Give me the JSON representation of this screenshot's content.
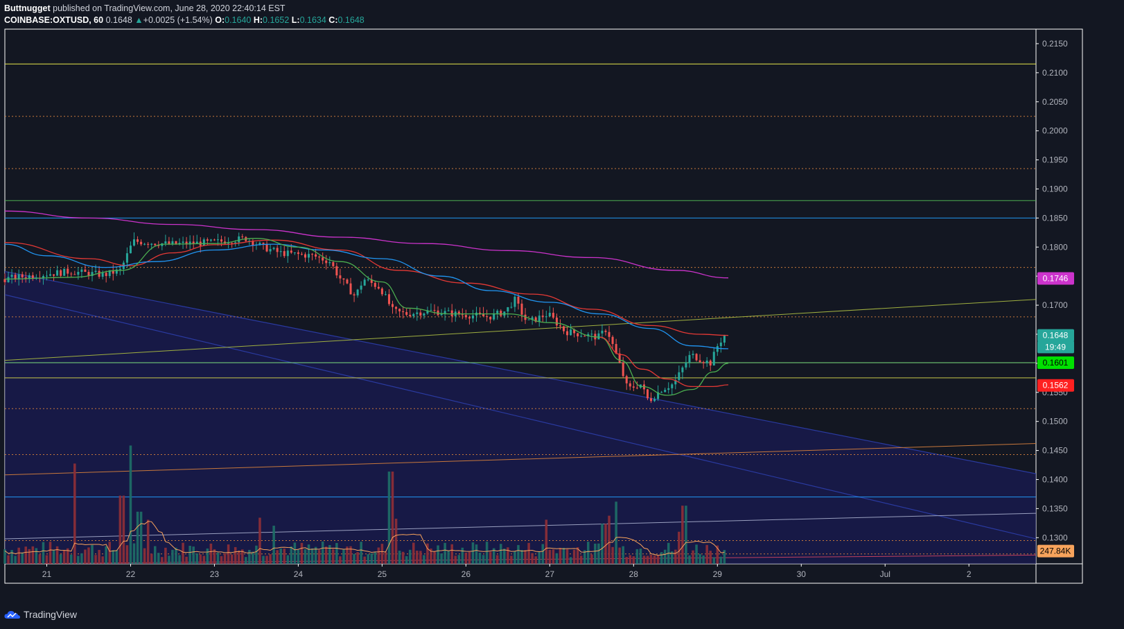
{
  "header": {
    "author": "Buttnugget",
    "published": "published on TradingView.com, June 28, 2020 22:40:14 EST",
    "symbol": "COINBASE:OXTUSD, 60",
    "last": "0.1648",
    "arrow": "▲",
    "change": "+0.0025 (+1.54%)",
    "o_label": "O:",
    "o": "0.1640",
    "h_label": "H:",
    "h": "0.1652",
    "l_label": "L:",
    "l": "0.1634",
    "c_label": "C:",
    "c": "0.1648"
  },
  "footer": {
    "brand": "TradingView"
  },
  "colors": {
    "background": "#131722",
    "up": "#26a69a",
    "down": "#ef5350",
    "ma_purple": "#cc33cc",
    "ma_red": "#e53935",
    "ma_blue": "#2196f3",
    "ma_green": "#4caf50",
    "channel_fill": "#1a1a5a"
  },
  "chart_data": {
    "type": "candlestick",
    "ylim": [
      0.1255,
      0.2175
    ],
    "y_ticks": [
      "0.2150",
      "0.2100",
      "0.2050",
      "0.2000",
      "0.1950",
      "0.1900",
      "0.1850",
      "0.1800",
      "0.1750",
      "0.1700",
      "0.1650",
      "0.1600",
      "0.1550",
      "0.1500",
      "0.1450",
      "0.1400",
      "0.1350",
      "0.1300"
    ],
    "x_labels": [
      "21",
      "22",
      "23",
      "24",
      "25",
      "26",
      "27",
      "28",
      "29",
      "30",
      "Jul",
      "2"
    ],
    "x_label_days": [
      21,
      22,
      23,
      24,
      25,
      26,
      27,
      28,
      29,
      30,
      31,
      32
    ],
    "x_range_days": [
      20.5,
      32.8
    ],
    "price_checkpoints": [
      [
        20.5,
        0.1745
      ],
      [
        20.9,
        0.1752
      ],
      [
        21.3,
        0.1758
      ],
      [
        21.7,
        0.1752
      ],
      [
        21.9,
        0.176
      ],
      [
        22.05,
        0.181
      ],
      [
        22.5,
        0.1805
      ],
      [
        23.0,
        0.1808
      ],
      [
        23.4,
        0.1815
      ],
      [
        23.6,
        0.18
      ],
      [
        23.8,
        0.179
      ],
      [
        24.2,
        0.1785
      ],
      [
        24.4,
        0.1775
      ],
      [
        24.5,
        0.175
      ],
      [
        24.7,
        0.1715
      ],
      [
        24.8,
        0.1745
      ],
      [
        25.0,
        0.173
      ],
      [
        25.15,
        0.169
      ],
      [
        25.3,
        0.1685
      ],
      [
        25.6,
        0.169
      ],
      [
        25.9,
        0.1685
      ],
      [
        26.3,
        0.168
      ],
      [
        26.5,
        0.169
      ],
      [
        26.6,
        0.171
      ],
      [
        26.75,
        0.167
      ],
      [
        27.0,
        0.1685
      ],
      [
        27.2,
        0.1655
      ],
      [
        27.6,
        0.1645
      ],
      [
        27.7,
        0.166
      ],
      [
        27.75,
        0.164
      ],
      [
        27.85,
        0.16
      ],
      [
        27.95,
        0.1555
      ],
      [
        28.1,
        0.1565
      ],
      [
        28.2,
        0.1535
      ],
      [
        28.35,
        0.1555
      ],
      [
        28.5,
        0.1565
      ],
      [
        28.6,
        0.159
      ],
      [
        28.7,
        0.1615
      ],
      [
        28.85,
        0.1605
      ],
      [
        28.95,
        0.16
      ],
      [
        29.0,
        0.1625
      ],
      [
        29.1,
        0.1648
      ]
    ],
    "series": [
      {
        "name": "",
        "type": "ma",
        "color": "#cc33cc",
        "points": [
          [
            20.5,
            0.1862
          ],
          [
            21.5,
            0.185
          ],
          [
            22.5,
            0.1839
          ],
          [
            23.5,
            0.183
          ],
          [
            24.5,
            0.1817
          ],
          [
            25.5,
            0.1806
          ],
          [
            26.5,
            0.1794
          ],
          [
            27.5,
            0.1782
          ],
          [
            28.5,
            0.176
          ],
          [
            29.13,
            0.1747
          ]
        ]
      },
      {
        "name": "",
        "type": "ma",
        "color": "#e53935",
        "points": [
          [
            20.5,
            0.1808
          ],
          [
            21.5,
            0.178
          ],
          [
            22.0,
            0.1768
          ],
          [
            22.5,
            0.179
          ],
          [
            23.0,
            0.1804
          ],
          [
            23.7,
            0.1812
          ],
          [
            24.5,
            0.1795
          ],
          [
            25.2,
            0.176
          ],
          [
            26.0,
            0.1738
          ],
          [
            26.8,
            0.1719
          ],
          [
            27.5,
            0.1693
          ],
          [
            28.2,
            0.1665
          ],
          [
            28.8,
            0.165
          ],
          [
            29.13,
            0.1648
          ]
        ]
      },
      {
        "name": "",
        "type": "ma",
        "color": "#2196f3",
        "points": [
          [
            20.5,
            0.1805
          ],
          [
            21.0,
            0.1785
          ],
          [
            21.7,
            0.1765
          ],
          [
            22.3,
            0.1775
          ],
          [
            23.0,
            0.1795
          ],
          [
            23.7,
            0.1805
          ],
          [
            24.3,
            0.1795
          ],
          [
            25.0,
            0.178
          ],
          [
            25.7,
            0.175
          ],
          [
            26.3,
            0.1725
          ],
          [
            27.0,
            0.1705
          ],
          [
            27.6,
            0.1685
          ],
          [
            28.2,
            0.166
          ],
          [
            28.7,
            0.163
          ],
          [
            29.13,
            0.1625
          ]
        ]
      },
      {
        "name": "",
        "type": "ma",
        "color": "#4caf50",
        "points": [
          [
            20.5,
            0.1745
          ],
          [
            21.3,
            0.1748
          ],
          [
            21.9,
            0.176
          ],
          [
            22.4,
            0.1805
          ],
          [
            23.0,
            0.1806
          ],
          [
            23.5,
            0.1815
          ],
          [
            24.0,
            0.18
          ],
          [
            24.5,
            0.1775
          ],
          [
            25.0,
            0.174
          ],
          [
            25.3,
            0.1695
          ],
          [
            25.8,
            0.1685
          ],
          [
            26.5,
            0.1685
          ],
          [
            27.0,
            0.167
          ],
          [
            27.6,
            0.1645
          ],
          [
            27.85,
            0.1605
          ],
          [
            28.1,
            0.156
          ],
          [
            28.4,
            0.1545
          ],
          [
            28.7,
            0.1555
          ],
          [
            28.95,
            0.1585
          ],
          [
            29.13,
            0.16
          ]
        ]
      },
      {
        "name": "",
        "type": "ma",
        "color": "#e53935",
        "points": [
          [
            27.6,
            0.1645
          ],
          [
            27.85,
            0.1615
          ],
          [
            28.1,
            0.159
          ],
          [
            28.4,
            0.1573
          ],
          [
            28.7,
            0.156
          ],
          [
            28.95,
            0.156
          ],
          [
            29.13,
            0.1563
          ]
        ]
      }
    ],
    "horizontal_levels": [
      {
        "price": 0.2115,
        "color": "#e8e84a",
        "style": "solid"
      },
      {
        "price": 0.2025,
        "color": "#c8783c",
        "style": "dotted"
      },
      {
        "price": 0.1935,
        "color": "#c8783c",
        "style": "dotted"
      },
      {
        "price": 0.188,
        "color": "#4caf50",
        "style": "solid"
      },
      {
        "price": 0.185,
        "color": "#2196f3",
        "style": "solid"
      },
      {
        "price": 0.1765,
        "color": "#c8783c",
        "style": "dotted"
      },
      {
        "price": 0.168,
        "color": "#c8783c",
        "style": "dotted"
      },
      {
        "price": 0.1601,
        "color": "#7ee07e",
        "style": "solid"
      },
      {
        "price": 0.1575,
        "color": "#c8c84a",
        "style": "solid"
      },
      {
        "price": 0.1522,
        "color": "#c8783c",
        "style": "dotted"
      },
      {
        "price": 0.1443,
        "color": "#c8783c",
        "style": "dotted"
      },
      {
        "price": 0.137,
        "color": "#2196f3",
        "style": "solid"
      },
      {
        "price": 0.1295,
        "color": "#c8783c",
        "style": "dotted"
      },
      {
        "price": 0.1272,
        "color": "#c8783c",
        "style": "dotted"
      }
    ],
    "trend_lines": [
      {
        "from": [
          20.5,
          0.1605
        ],
        "to": [
          32.8,
          0.171
        ],
        "color": "#a0b040"
      },
      {
        "from": [
          20.5,
          0.1408
        ],
        "to": [
          32.8,
          0.1462
        ],
        "color": "#c8783c"
      },
      {
        "from": [
          20.5,
          0.1298
        ],
        "to": [
          32.8,
          0.1342
        ],
        "color": "#9aa0c0"
      },
      {
        "from": [
          20.5,
          0.1255
        ],
        "to": [
          32.8,
          0.127
        ],
        "color": "#c04060"
      }
    ],
    "channel": {
      "upper": [
        [
          20.5,
          0.1758
        ],
        [
          32.8,
          0.141
        ]
      ],
      "lower": [
        [
          20.5,
          0.1718
        ],
        [
          32.8,
          0.1298
        ]
      ],
      "fill_color": "#1a1a5a"
    },
    "price_tags": [
      {
        "label": "0.1746",
        "price": 0.1746,
        "bg": "#cc33cc",
        "fg": "#ffffff"
      },
      {
        "label": "0.1648",
        "price": 0.1648,
        "bg": "#26a69a",
        "fg": "#ffffff"
      },
      {
        "label": "19:49",
        "price": 0.1628,
        "bg": "#26a69a",
        "fg": "#ffffff"
      },
      {
        "label": "0.1601",
        "price": 0.1601,
        "bg": "#00e000",
        "fg": "#000000"
      },
      {
        "label": "0.1562",
        "price": 0.1562,
        "bg": "#ff2020",
        "fg": "#ffffff"
      },
      {
        "label": "247.84K",
        "price": 0.1277,
        "bg": "#f7a35c",
        "fg": "#000000"
      }
    ],
    "volume": {
      "spikes": [
        [
          21.33,
          1.0
        ],
        [
          21.9,
          0.68
        ],
        [
          22.0,
          1.18
        ],
        [
          22.1,
          0.52
        ],
        [
          22.2,
          0.44
        ],
        [
          23.55,
          0.46
        ],
        [
          23.7,
          0.38
        ],
        [
          25.1,
          0.92
        ],
        [
          25.15,
          0.45
        ],
        [
          26.95,
          0.44
        ],
        [
          27.65,
          0.4
        ],
        [
          27.72,
          0.48
        ],
        [
          27.8,
          0.62
        ],
        [
          28.6,
          0.58
        ],
        [
          28.55,
          0.32
        ]
      ],
      "max_height_ratio": 0.25
    }
  }
}
